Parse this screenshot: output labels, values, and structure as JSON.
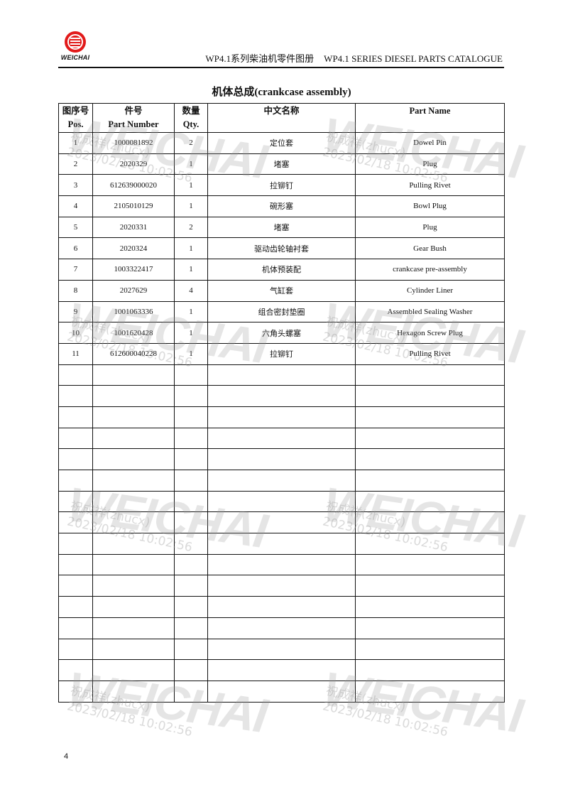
{
  "header": {
    "logo_text": "WEICHAI",
    "title_cn": "WP4.1系列柴油机零件图册",
    "title_en": "WP4.1 SERIES DIESEL PARTS CATALOGUE",
    "logo_color": "#e21a1a"
  },
  "page_title": "机体总成(crankcase  assembly)",
  "table": {
    "headers": [
      {
        "cn": "图序号",
        "en": "Pos."
      },
      {
        "cn": "件号",
        "en": "Part Number"
      },
      {
        "cn": "数量",
        "en": "Qty."
      },
      {
        "cn": "中文名称",
        "en": ""
      },
      {
        "cn": "Part Name",
        "en": ""
      }
    ],
    "rows": [
      [
        "1",
        "1000081892",
        "2",
        "定位套",
        "Dowel Pin"
      ],
      [
        "2",
        "2020329",
        "1",
        "堵塞",
        "Plug"
      ],
      [
        "3",
        "612639000020",
        "1",
        "拉铆钉",
        "Pulling Rivet"
      ],
      [
        "4",
        "2105010129",
        "1",
        "碗形塞",
        "Bowl Plug"
      ],
      [
        "5",
        "2020331",
        "2",
        "堵塞",
        "Plug"
      ],
      [
        "6",
        "2020324",
        "1",
        "驱动齿轮轴衬套",
        "Gear Bush"
      ],
      [
        "7",
        "1003322417",
        "1",
        "机体预装配",
        "crankcase pre-assembly"
      ],
      [
        "8",
        "2027629",
        "4",
        "气缸套",
        "Cylinder Liner"
      ],
      [
        "9",
        "1001063336",
        "1",
        "组合密封垫圈",
        "Assembled Sealing Washer"
      ],
      [
        "10",
        "1001620428",
        "1",
        "六角头螺塞",
        "Hexagon Screw Plug"
      ],
      [
        "11",
        "612600040228",
        "1",
        "拉铆钉",
        "Pulling Rivet"
      ]
    ],
    "empty_rows": 16
  },
  "watermark": {
    "logo": "WEICHAI",
    "user": "祝成祥(zhucx)",
    "timestamp": "2023/02/18 10:02:56"
  },
  "page_number": "4"
}
